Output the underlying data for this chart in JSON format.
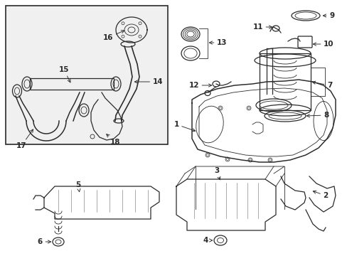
{
  "bg_color": "#ffffff",
  "line_color": "#2a2a2a",
  "box_bg": "#f5f5f5",
  "figsize": [
    4.89,
    3.6
  ],
  "dpi": 100,
  "xlim": [
    0,
    489
  ],
  "ylim": [
    0,
    360
  ]
}
